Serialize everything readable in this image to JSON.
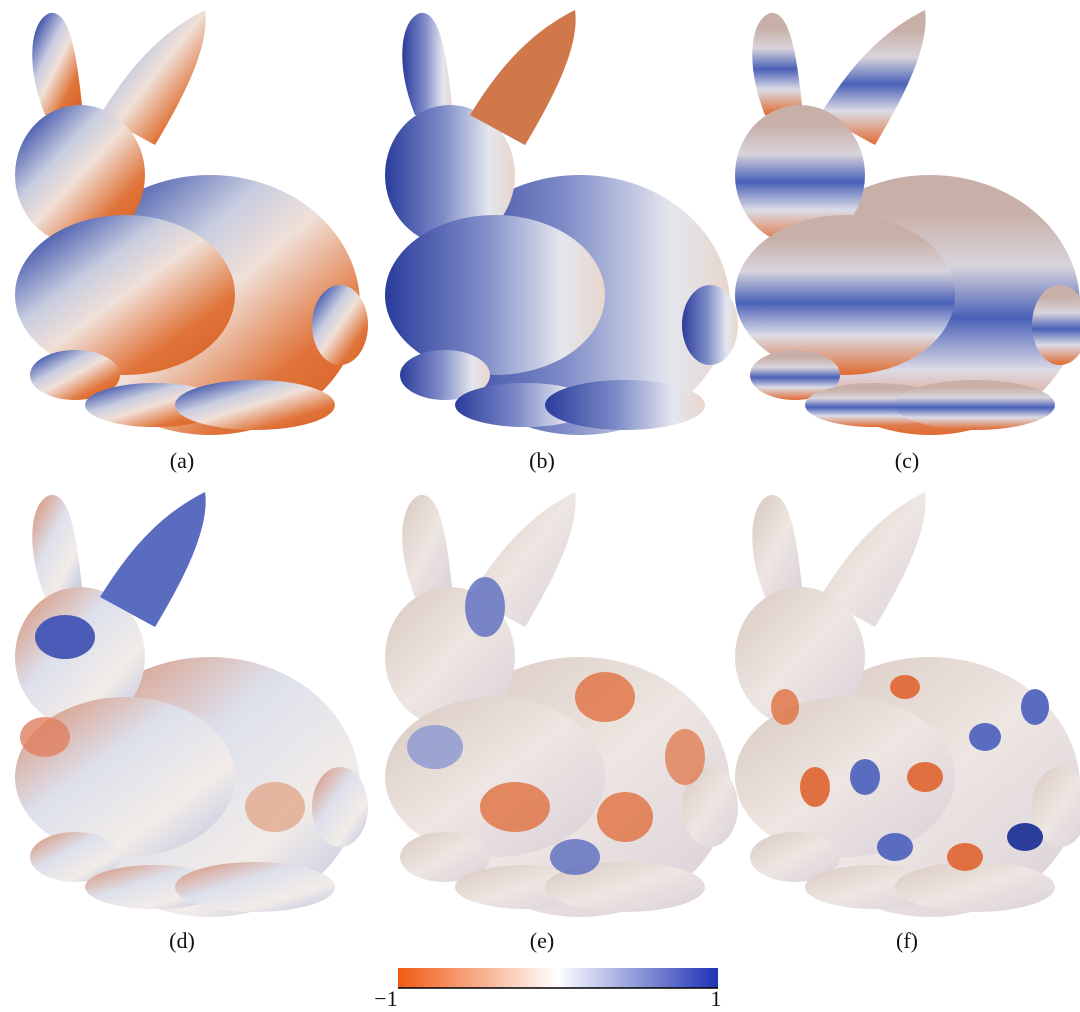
{
  "panels": [
    {
      "label": "(a)"
    },
    {
      "label": "(b)"
    },
    {
      "label": "(c)"
    },
    {
      "label": "(d)"
    },
    {
      "label": "(e)"
    },
    {
      "label": "(f)"
    }
  ],
  "colorbar": {
    "min_label": "−1",
    "max_label": "1"
  }
}
